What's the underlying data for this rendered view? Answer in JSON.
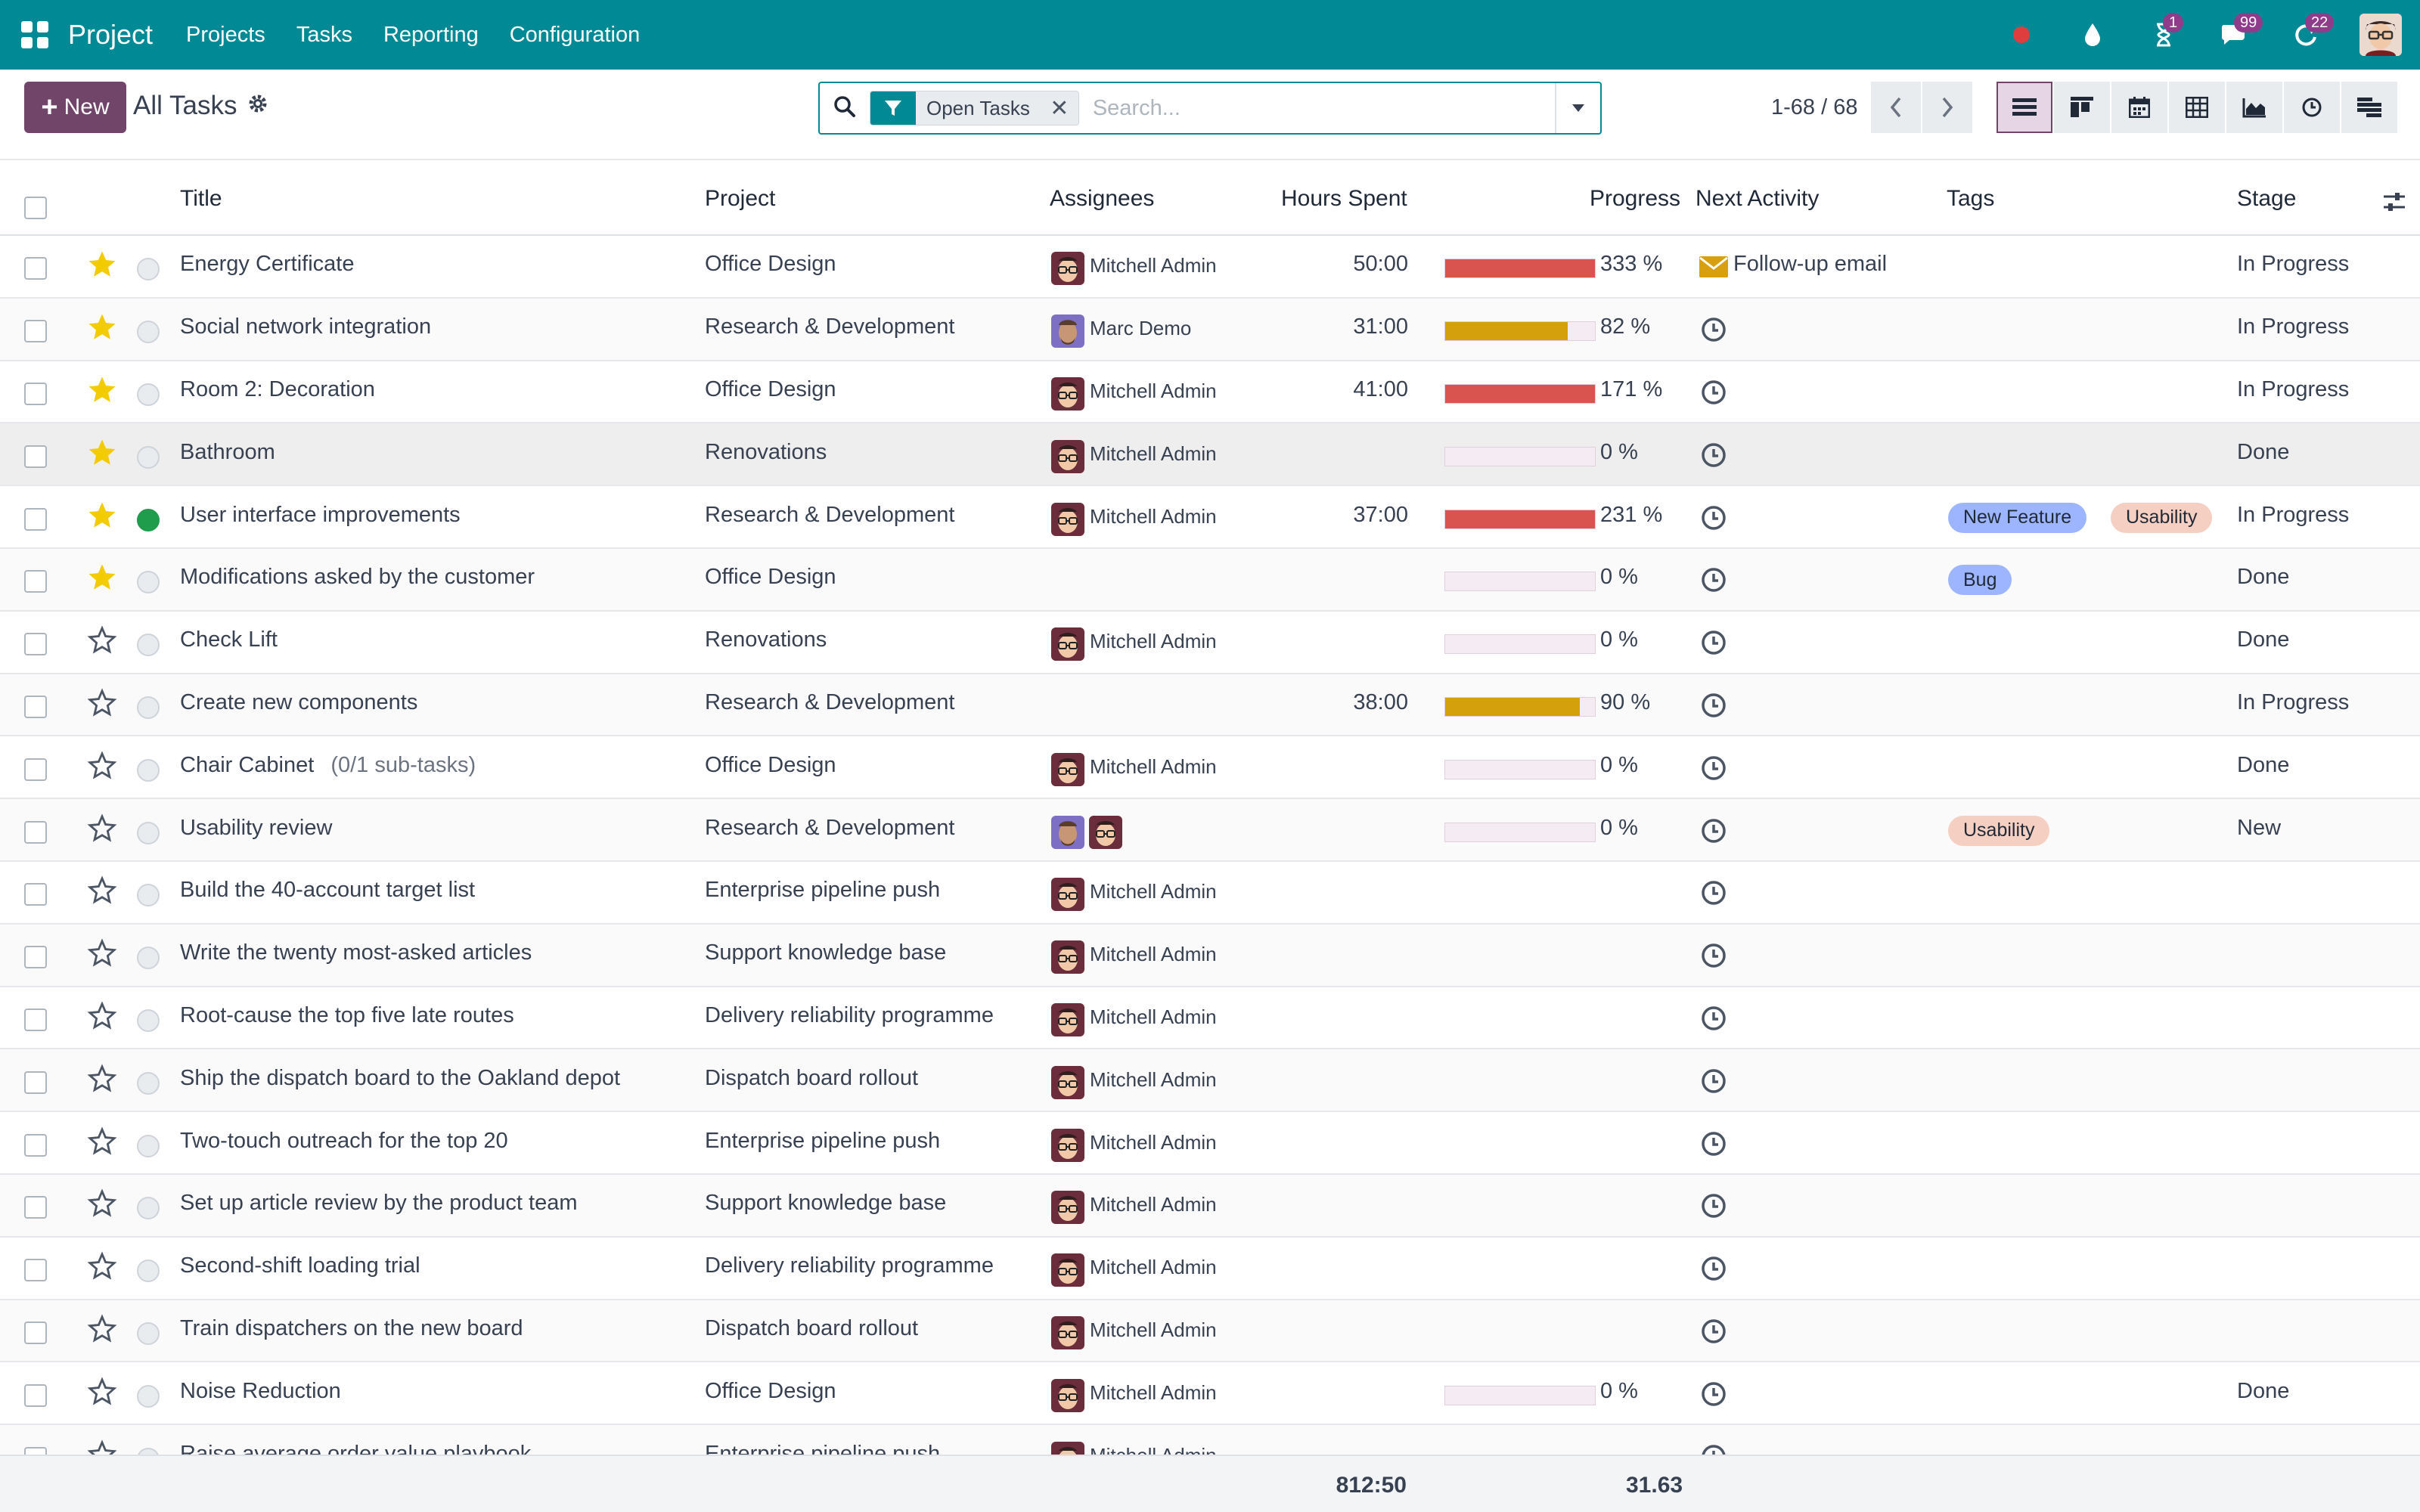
{
  "navbar": {
    "brand": "Project",
    "menu": [
      "Projects",
      "Tasks",
      "Reporting",
      "Configuration"
    ],
    "badges": {
      "activity": "1",
      "messages": "99",
      "updates": "22"
    },
    "colors": {
      "navbar": "#018a96",
      "primary": "#71456a",
      "badge": "#8f3c8a"
    }
  },
  "control": {
    "new_label": "New",
    "title": "All Tasks",
    "facet_label": "Open Tasks",
    "search_placeholder": "Search...",
    "pager": "1-68 / 68"
  },
  "columns": {
    "title": "Title",
    "project": "Project",
    "assignees": "Assignees",
    "hours": "Hours Spent",
    "progress": "Progress",
    "activity": "Next Activity",
    "tags": "Tags",
    "stage": "Stage"
  },
  "rows": [
    {
      "title": "Energy Certificate",
      "subtasks": "",
      "project": "Office Design",
      "assignees": [
        "mitchell"
      ],
      "assignee_name": "Mitchell Admin",
      "hours": "50:00",
      "progress": 333,
      "progress_text": "333 %",
      "activity": "Follow-up email",
      "activity_type": "mail",
      "tags": [],
      "stage": "In Progress",
      "starred": true,
      "state": "normal"
    },
    {
      "title": "Social network integration",
      "subtasks": "",
      "project": "Research & Development",
      "assignees": [
        "marc"
      ],
      "assignee_name": "Marc Demo",
      "hours": "31:00",
      "progress": 82,
      "progress_text": "82 %",
      "activity": "",
      "activity_type": "clock",
      "tags": [],
      "stage": "In Progress",
      "starred": true,
      "state": "normal"
    },
    {
      "title": "Room 2: Decoration",
      "subtasks": "",
      "project": "Office Design",
      "assignees": [
        "mitchell"
      ],
      "assignee_name": "Mitchell Admin",
      "hours": "41:00",
      "progress": 171,
      "progress_text": "171 %",
      "activity": "",
      "activity_type": "clock",
      "tags": [],
      "stage": "In Progress",
      "starred": true,
      "state": "normal"
    },
    {
      "title": "Bathroom",
      "subtasks": "",
      "project": "Renovations",
      "assignees": [
        "mitchell"
      ],
      "assignee_name": "Mitchell Admin",
      "hours": "",
      "progress": 0,
      "progress_text": "0 %",
      "activity": "",
      "activity_type": "clock",
      "tags": [],
      "stage": "Done",
      "starred": true,
      "state": "normal"
    },
    {
      "title": "User interface improvements",
      "subtasks": "",
      "project": "Research & Development",
      "assignees": [
        "mitchell"
      ],
      "assignee_name": "Mitchell Admin",
      "hours": "37:00",
      "progress": 231,
      "progress_text": "231 %",
      "activity": "",
      "activity_type": "clock",
      "tags": [
        {
          "name": "New Feature",
          "color": "blue"
        },
        {
          "name": "Usability",
          "color": "peach"
        }
      ],
      "stage": "In Progress",
      "starred": true,
      "state": "done"
    },
    {
      "title": "Modifications asked by the customer",
      "subtasks": "",
      "project": "Office Design",
      "assignees": [],
      "assignee_name": "",
      "hours": "",
      "progress": 0,
      "progress_text": "0 %",
      "activity": "",
      "activity_type": "clock",
      "tags": [
        {
          "name": "Bug",
          "color": "blue"
        }
      ],
      "stage": "Done",
      "starred": true,
      "state": "normal"
    },
    {
      "title": "Check Lift",
      "subtasks": "",
      "project": "Renovations",
      "assignees": [
        "mitchell"
      ],
      "assignee_name": "Mitchell Admin",
      "hours": "",
      "progress": 0,
      "progress_text": "0 %",
      "activity": "",
      "activity_type": "clock",
      "tags": [],
      "stage": "Done",
      "starred": false,
      "state": "normal"
    },
    {
      "title": "Create new components",
      "subtasks": "",
      "project": "Research & Development",
      "assignees": [],
      "assignee_name": "",
      "hours": "38:00",
      "progress": 90,
      "progress_text": "90 %",
      "activity": "",
      "activity_type": "clock",
      "tags": [],
      "stage": "In Progress",
      "starred": false,
      "state": "normal"
    },
    {
      "title": "Chair Cabinet",
      "subtasks": "(0/1 sub-tasks)",
      "project": "Office Design",
      "assignees": [
        "mitchell"
      ],
      "assignee_name": "Mitchell Admin",
      "hours": "",
      "progress": 0,
      "progress_text": "0 %",
      "activity": "",
      "activity_type": "clock",
      "tags": [],
      "stage": "Done",
      "starred": false,
      "state": "normal"
    },
    {
      "title": "Usability review",
      "subtasks": "",
      "project": "Research & Development",
      "assignees": [
        "marc",
        "mitchell"
      ],
      "assignee_name": "",
      "hours": "",
      "progress": 0,
      "progress_text": "0 %",
      "activity": "",
      "activity_type": "clock",
      "tags": [
        {
          "name": "Usability",
          "color": "peach"
        }
      ],
      "stage": "New",
      "starred": false,
      "state": "normal"
    },
    {
      "title": "Build the 40-account target list",
      "subtasks": "",
      "project": "Enterprise pipeline push",
      "assignees": [
        "mitchell"
      ],
      "assignee_name": "Mitchell Admin",
      "hours": "",
      "progress": null,
      "progress_text": "",
      "activity": "",
      "activity_type": "clock",
      "tags": [],
      "stage": "",
      "starred": false,
      "state": "normal"
    },
    {
      "title": "Write the twenty most-asked articles",
      "subtasks": "",
      "project": "Support knowledge base",
      "assignees": [
        "mitchell"
      ],
      "assignee_name": "Mitchell Admin",
      "hours": "",
      "progress": null,
      "progress_text": "",
      "activity": "",
      "activity_type": "clock",
      "tags": [],
      "stage": "",
      "starred": false,
      "state": "normal"
    },
    {
      "title": "Root-cause the top five late routes",
      "subtasks": "",
      "project": "Delivery reliability programme",
      "assignees": [
        "mitchell"
      ],
      "assignee_name": "Mitchell Admin",
      "hours": "",
      "progress": null,
      "progress_text": "",
      "activity": "",
      "activity_type": "clock",
      "tags": [],
      "stage": "",
      "starred": false,
      "state": "normal"
    },
    {
      "title": "Ship the dispatch board to the Oakland depot",
      "subtasks": "",
      "project": "Dispatch board rollout",
      "assignees": [
        "mitchell"
      ],
      "assignee_name": "Mitchell Admin",
      "hours": "",
      "progress": null,
      "progress_text": "",
      "activity": "",
      "activity_type": "clock",
      "tags": [],
      "stage": "",
      "starred": false,
      "state": "normal"
    },
    {
      "title": "Two-touch outreach for the top 20",
      "subtasks": "",
      "project": "Enterprise pipeline push",
      "assignees": [
        "mitchell"
      ],
      "assignee_name": "Mitchell Admin",
      "hours": "",
      "progress": null,
      "progress_text": "",
      "activity": "",
      "activity_type": "clock",
      "tags": [],
      "stage": "",
      "starred": false,
      "state": "normal"
    },
    {
      "title": "Set up article review by the product team",
      "subtasks": "",
      "project": "Support knowledge base",
      "assignees": [
        "mitchell"
      ],
      "assignee_name": "Mitchell Admin",
      "hours": "",
      "progress": null,
      "progress_text": "",
      "activity": "",
      "activity_type": "clock",
      "tags": [],
      "stage": "",
      "starred": false,
      "state": "normal"
    },
    {
      "title": "Second-shift loading trial",
      "subtasks": "",
      "project": "Delivery reliability programme",
      "assignees": [
        "mitchell"
      ],
      "assignee_name": "Mitchell Admin",
      "hours": "",
      "progress": null,
      "progress_text": "",
      "activity": "",
      "activity_type": "clock",
      "tags": [],
      "stage": "",
      "starred": false,
      "state": "normal"
    },
    {
      "title": "Train dispatchers on the new board",
      "subtasks": "",
      "project": "Dispatch board rollout",
      "assignees": [
        "mitchell"
      ],
      "assignee_name": "Mitchell Admin",
      "hours": "",
      "progress": null,
      "progress_text": "",
      "activity": "",
      "activity_type": "clock",
      "tags": [],
      "stage": "",
      "starred": false,
      "state": "normal"
    },
    {
      "title": "Noise Reduction",
      "subtasks": "",
      "project": "Office Design",
      "assignees": [
        "mitchell"
      ],
      "assignee_name": "Mitchell Admin",
      "hours": "",
      "progress": 0,
      "progress_text": "0 %",
      "activity": "",
      "activity_type": "clock",
      "tags": [],
      "stage": "Done",
      "starred": false,
      "state": "normal"
    },
    {
      "title": "Raise average order value playbook",
      "subtasks": "",
      "project": "Enterprise pipeline push",
      "assignees": [
        "mitchell"
      ],
      "assignee_name": "Mitchell Admin",
      "hours": "",
      "progress": null,
      "progress_text": "",
      "activity": "",
      "activity_type": "clock",
      "tags": [],
      "stage": "",
      "starred": false,
      "state": "normal"
    }
  ],
  "footer": {
    "hours_total": "812:50",
    "progress_avg": "31.63"
  }
}
